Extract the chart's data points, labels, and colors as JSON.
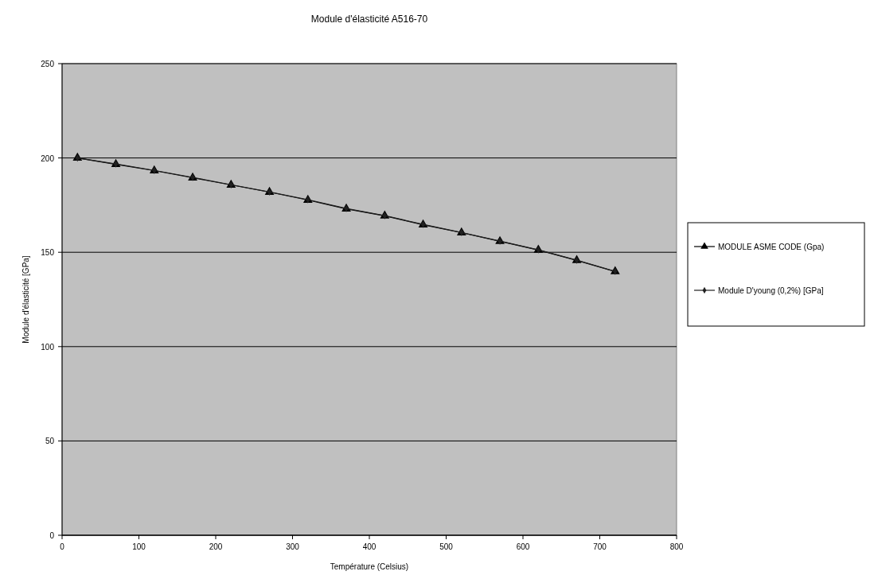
{
  "chart_data": {
    "type": "line",
    "title": "Module d'élasticité A516-70",
    "xlabel": "Température (Celsius)",
    "ylabel": "Module d'élasticité [GPa]",
    "x": [
      20,
      70,
      120,
      170,
      220,
      270,
      320,
      370,
      420,
      470,
      520,
      570,
      620,
      670,
      720
    ],
    "series": [
      {
        "name": "MODULE ASME CODE (Gpa)",
        "color": "#000000",
        "marker": "triangle",
        "values": [
          200,
          196.6,
          193.3,
          189.5,
          185.7,
          181.9,
          177.7,
          173,
          169.3,
          164.6,
          160.4,
          155.8,
          151.2,
          145.7,
          139.8
        ]
      },
      {
        "name": "Module D'young (0,2%) [GPa]",
        "color": "#202020",
        "marker": "diamond",
        "values": [
          200,
          196.8,
          193.4,
          189.7,
          185.8,
          182,
          177.9,
          173.2,
          169.4,
          164.8,
          160.5,
          155.9,
          151.3,
          145.8,
          139.9
        ]
      }
    ],
    "xlim": [
      0,
      800
    ],
    "xticks": [
      0,
      100,
      200,
      300,
      400,
      500,
      600,
      700,
      800
    ],
    "ylim": [
      0,
      250
    ],
    "yticks": [
      0,
      50,
      100,
      150,
      200,
      250
    ],
    "grid": "y",
    "legend": "right"
  }
}
